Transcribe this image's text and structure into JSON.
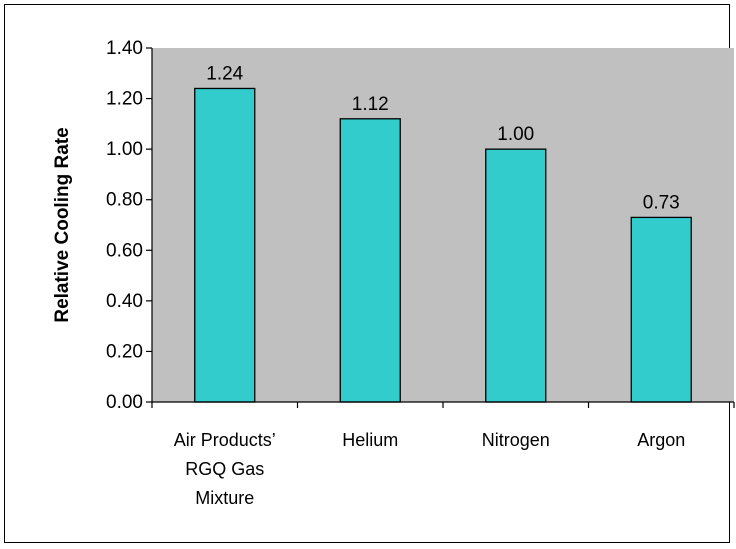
{
  "chart_data": {
    "type": "bar",
    "title": "",
    "xlabel": "",
    "ylabel": "Relative Cooling Rate",
    "categories": [
      [
        "Air Products’",
        "RGQ Gas",
        "Mixture"
      ],
      [
        "Helium"
      ],
      [
        "Nitrogen"
      ],
      [
        "Argon"
      ]
    ],
    "values": [
      1.24,
      1.12,
      1.0,
      0.73
    ],
    "data_labels": [
      "1.24",
      "1.12",
      "1.00",
      "0.73"
    ],
    "yticks": [
      "0.00",
      "0.20",
      "0.40",
      "0.60",
      "0.80",
      "1.00",
      "1.20",
      "1.40"
    ],
    "ylim": [
      0,
      1.4
    ],
    "grid": false,
    "legend": "none",
    "colors": {
      "plot_background": "#c0c0c0",
      "bar_fill": "#33cccc",
      "bar_stroke": "#000000"
    }
  }
}
